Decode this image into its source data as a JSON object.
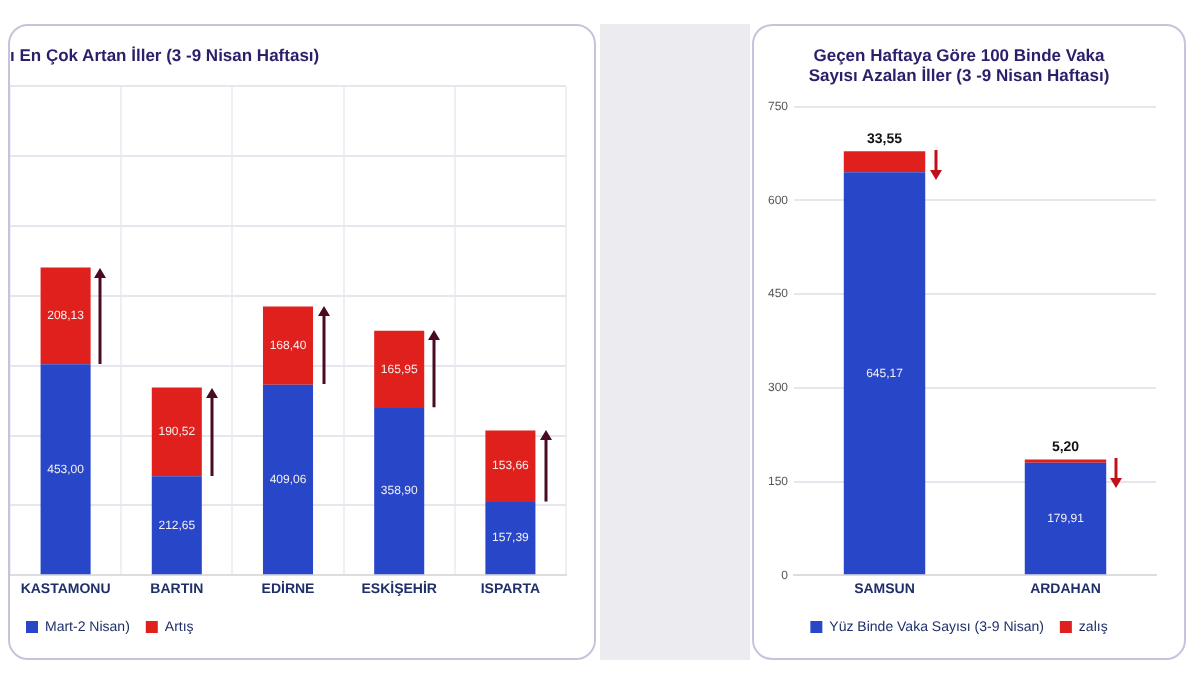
{
  "chart_data": [
    {
      "type": "bar",
      "title": "ı En Çok Artan İller (3 -9 Nisan Haftası)",
      "categories": [
        "KASTAMONU",
        "BARTIN",
        "EDİRNE",
        "ESKİŞEHİR",
        "ISPARTA"
      ],
      "stacked": true,
      "series": [
        {
          "name": "Mart-2 Nisan)",
          "color": "#2846c8",
          "values": [
            453.0,
            212.65,
            409.06,
            358.9,
            157.39
          ],
          "value_labels": [
            "453,00",
            "212,65",
            "409,06",
            "358,90",
            "157,39"
          ]
        },
        {
          "name": "Artış",
          "color": "#e0201c",
          "values": [
            208.13,
            190.52,
            168.4,
            165.95,
            153.66
          ],
          "value_labels": [
            "208,13",
            "190,52",
            "168,40",
            "165,95",
            "153,66"
          ]
        }
      ],
      "ylim": [
        0,
        1050
      ],
      "yticks": [
        {
          "value": 0,
          "label": null
        },
        {
          "value": 150,
          "label": null
        },
        {
          "value": 300,
          "label": null
        },
        {
          "value": 450,
          "label": null
        },
        {
          "value": 600,
          "label": null
        },
        {
          "value": 750,
          "label": null
        },
        {
          "value": 900,
          "label": null
        },
        {
          "value": 1050,
          "label": null
        }
      ],
      "tick_labels": "x",
      "grid": true,
      "legend": "bottom"
    },
    {
      "type": "bar",
      "title": "Geçen Haftaya Göre 100 Binde Vaka Sayısı Azalan İller (3 -9 Nisan Haftası)",
      "categories": [
        "SAMSUN",
        "ARDAHAN"
      ],
      "stacked": true,
      "series": [
        {
          "name": "Yüz Binde Vaka Sayısı (3-9 Nisan)",
          "color": "#2846c8",
          "values": [
            645.17,
            179.91
          ],
          "value_labels": [
            "645,17",
            "179,91"
          ]
        },
        {
          "name": "zalış",
          "color": "#e0201c",
          "values": [
            33.55,
            5.2
          ],
          "value_labels": [
            "33,55",
            "5,20"
          ]
        }
      ],
      "ylim": [
        0,
        750
      ],
      "yticks": [
        0,
        150,
        300,
        450,
        600,
        750
      ],
      "grid": "y",
      "legend": "bottom"
    }
  ]
}
